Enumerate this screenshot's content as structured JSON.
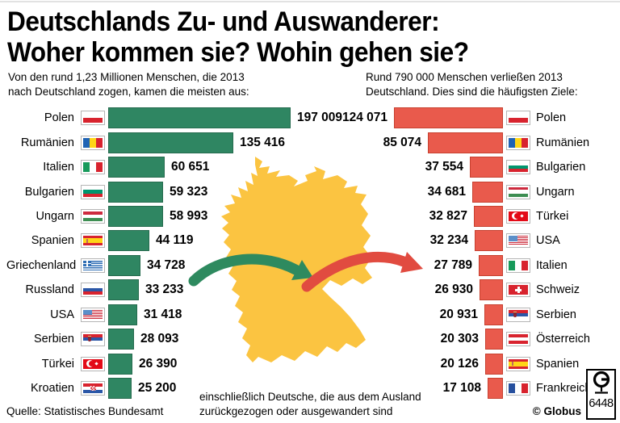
{
  "title": {
    "line1": "Deutschlands Zu- und Auswanderer:",
    "line2": "Woher kommen sie? Wohin gehen sie?"
  },
  "intro_left": {
    "line1": "Von den rund 1,23 Millionen Menschen, die 2013",
    "line2": "nach Deutschland zogen, kamen die meisten aus:"
  },
  "intro_right": {
    "line1": "Rund 790 000 Menschen verließen 2013",
    "line2": "Deutschland. Dies sind die häufigsten Ziele:"
  },
  "colors": {
    "immigration_bar": "#2F8662",
    "immigration_border": "#256B4E",
    "emigration_bar": "#E95A4C",
    "emigration_border": "#C7402F",
    "map": "#FBC441",
    "arrow_in": "#2E8A5F",
    "arrow_out": "#E14B40"
  },
  "chart_data": [
    {
      "type": "bar",
      "orientation": "horizontal",
      "side": "left",
      "title": "Von den rund 1,23 Millionen Menschen, die 2013 nach Deutschland zogen, kamen die meisten aus:",
      "categories": [
        "Polen",
        "Rumänien",
        "Italien",
        "Bulgarien",
        "Ungarn",
        "Spanien",
        "Griechenland",
        "Russland",
        "USA",
        "Serbien",
        "Türkei",
        "Kroatien"
      ],
      "values": [
        197009,
        135416,
        60651,
        59323,
        58993,
        44119,
        34728,
        33233,
        31418,
        28093,
        26390,
        25200
      ],
      "value_labels": [
        "197 009",
        "135 416",
        "60 651",
        "59 323",
        "58 993",
        "44 119",
        "34 728",
        "33 233",
        "31 418",
        "28 093",
        "26 390",
        "25 200"
      ],
      "flags": [
        "poland",
        "romania",
        "italy",
        "bulgaria",
        "hungary",
        "spain",
        "greece",
        "russia",
        "usa",
        "serbia",
        "turkey",
        "croatia"
      ],
      "bar_color": "#2F8662",
      "bar_border": "#256B4E"
    },
    {
      "type": "bar",
      "orientation": "horizontal",
      "side": "right",
      "title": "Rund 790 000 Menschen verließen 2013 Deutschland. Dies sind die häufigsten Ziele:",
      "categories": [
        "Polen",
        "Rumänien",
        "Bulgarien",
        "Ungarn",
        "Türkei",
        "USA",
        "Italien",
        "Schweiz",
        "Serbien",
        "Österreich",
        "Spanien",
        "Frankreich"
      ],
      "values": [
        124071,
        85074,
        37554,
        34681,
        32827,
        32234,
        27789,
        26930,
        20931,
        20303,
        20126,
        17108
      ],
      "value_labels": [
        "124 071",
        "85 074",
        "37 554",
        "34 681",
        "32 827",
        "32 234",
        "27 789",
        "26 930",
        "20 931",
        "20 303",
        "20 126",
        "17 108"
      ],
      "flags": [
        "poland",
        "romania",
        "bulgaria",
        "hungary",
        "turkey",
        "usa",
        "italy",
        "switzerland",
        "serbia",
        "austria",
        "spain",
        "france"
      ],
      "bar_color": "#E95A4C",
      "bar_border": "#C7402F"
    }
  ],
  "footer": {
    "source": "Quelle: Statistisches Bundesamt",
    "note_line1": "einschließlich Deutsche, die aus dem Ausland",
    "note_line2": "zurückgezogen oder ausgewandert sind",
    "credit": "© Globus",
    "logo_number": "6448"
  }
}
